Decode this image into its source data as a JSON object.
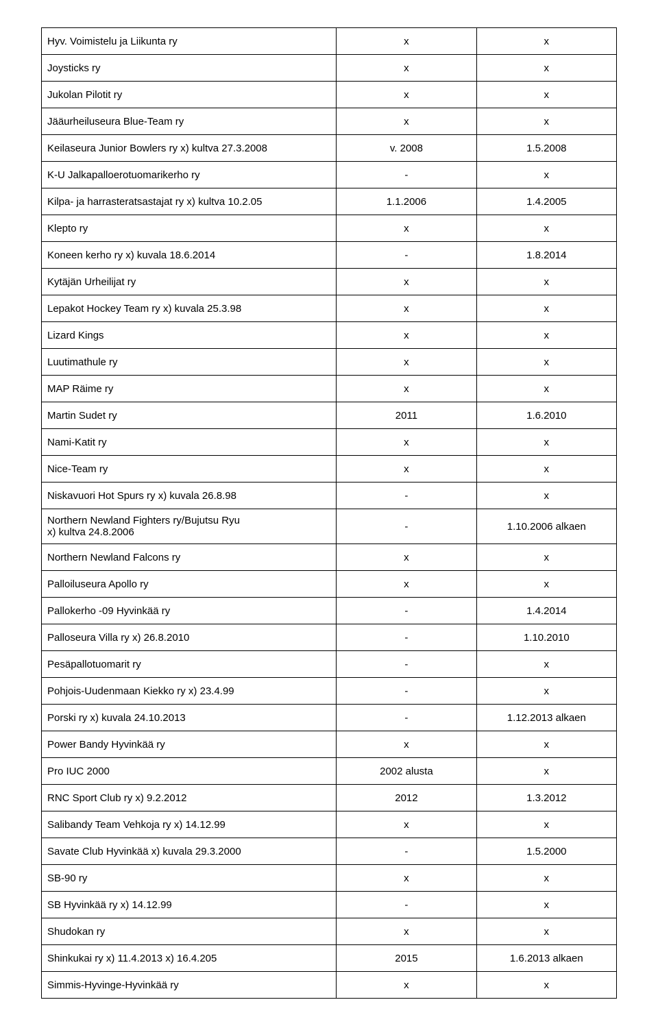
{
  "rows": [
    {
      "name": "Hyv. Voimistelu ja Liikunta ry",
      "a": "x",
      "b": "x"
    },
    {
      "name": "Joysticks ry",
      "a": "x",
      "b": "x"
    },
    {
      "name": "Jukolan Pilotit ry",
      "a": "x",
      "b": "x"
    },
    {
      "name": "Jääurheiluseura Blue-Team ry",
      "a": "x",
      "b": "x"
    },
    {
      "name": "Keilaseura Junior Bowlers ry   x) kultva 27.3.2008",
      "a": "v. 2008",
      "b": "1.5.2008"
    },
    {
      "name": "K-U Jalkapalloerotuomarikerho ry",
      "a": "-",
      "b": "x"
    },
    {
      "name": "Kilpa- ja harrasteratsastajat ry      x) kultva 10.2.05",
      "a": "1.1.2006",
      "b": "1.4.2005"
    },
    {
      "name": "Klepto ry",
      "a": "x",
      "b": "x"
    },
    {
      "name": "Koneen kerho ry               x) kuvala 18.6.2014",
      "a": "-",
      "b": "1.8.2014"
    },
    {
      "name": "Kytäjän Urheilijat ry",
      "a": "x",
      "b": "x"
    },
    {
      "name": "Lepakot Hockey Team ry          x)  kuvala 25.3.98",
      "a": "x",
      "b": "x"
    },
    {
      "name": "Lizard Kings",
      "a": "x",
      "b": "x"
    },
    {
      "name": "Luutimathule ry",
      "a": "x",
      "b": "x"
    },
    {
      "name": "MAP Räime ry",
      "a": "x",
      "b": "x"
    },
    {
      "name": "Martin Sudet ry",
      "a": "2011",
      "b": "1.6.2010"
    },
    {
      "name": "Nami-Katit ry",
      "a": "x",
      "b": "x"
    },
    {
      "name": "Nice-Team ry",
      "a": "x",
      "b": "x"
    },
    {
      "name": "Niskavuori Hot Spurs ry          x) kuvala 26.8.98",
      "a": "-",
      "b": "x"
    },
    {
      "name": "Northern Newland Fighters ry/Bujutsu Ryu",
      "name2": " x) kultva 24.8.2006",
      "a": "-",
      "b": "1.10.2006 alkaen"
    },
    {
      "name": "Northern Newland Falcons ry",
      "a": "x",
      "b": "x"
    },
    {
      "name": "Palloiluseura Apollo ry",
      "a": "x",
      "b": "x"
    },
    {
      "name": "Pallokerho -09 Hyvinkää ry",
      "a": "-",
      "b": "1.4.2014"
    },
    {
      "name": "Palloseura Villa ry                x) 26.8.2010",
      "a": "-",
      "b": "1.10.2010"
    },
    {
      "name": "Pesäpallotuomarit ry",
      "a": "-",
      "b": "x"
    },
    {
      "name": "Pohjois-Uudenmaan Kiekko ry      x) 23.4.99",
      "a": "-",
      "b": "x"
    },
    {
      "name": "Porski ry                            x) kuvala 24.10.2013",
      "a": "-",
      "b": "1.12.2013 alkaen"
    },
    {
      "name": "Power Bandy Hyvinkää ry",
      "a": "x",
      "b": "x"
    },
    {
      "name": "Pro IUC 2000",
      "a": "2002 alusta",
      "b": "x"
    },
    {
      "name": "RNC Sport Club ry   x) 9.2.2012",
      "a": "2012",
      "b": "1.3.2012"
    },
    {
      "name": "Salibandy Team Vehkoja ry        x) 14.12.99",
      "a": "x",
      "b": "x"
    },
    {
      "name": "Savate Club Hyvinkää         x) kuvala 29.3.2000",
      "a": "-",
      "b": "1.5.2000"
    },
    {
      "name": "SB-90 ry",
      "a": "x",
      "b": "x"
    },
    {
      "name": "SB Hyvinkää ry                   x)  14.12.99",
      "a": "-",
      "b": "x"
    },
    {
      "name": "Shudokan ry",
      "a": "x",
      "b": "x"
    },
    {
      "name": "Shinkukai ry    x) 11.4.2013  x) 16.4.205",
      "a": "2015",
      "b": "1.6.2013 alkaen"
    },
    {
      "name": "Simmis-Hyvinge-Hyvinkää ry",
      "a": "x",
      "b": "x"
    }
  ]
}
